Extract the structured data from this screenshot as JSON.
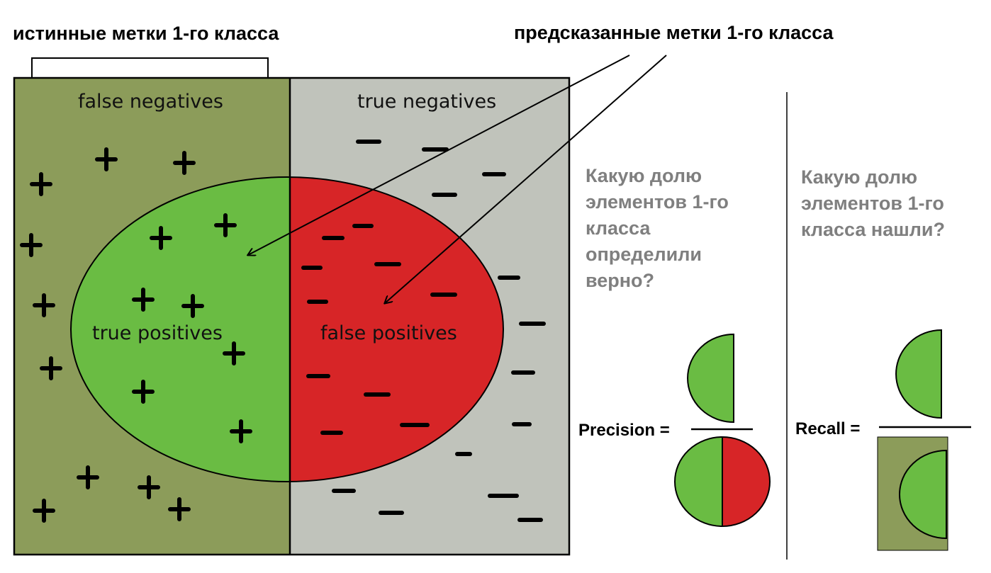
{
  "header": {
    "actual_positive_label": "истинные метки 1-го класса",
    "predicted_positive_label": "предсказанные метки 1-го класса"
  },
  "regions": {
    "false_negatives": "false negatives",
    "true_negatives": "true negatives",
    "true_positives": "true positives",
    "false_positives": "false positives"
  },
  "precision": {
    "question": "Какую долю элементов 1-го класса определили верно?",
    "label": "Precision ="
  },
  "recall": {
    "question": "Какую долю элементов 1-го класса нашли?",
    "label": "Recall ="
  },
  "colors": {
    "actual_negative_background": "#8c9c5a",
    "predicted_negative_background": "#c0c3bb",
    "true_positive": "#6abc43",
    "false_positive": "#d72527",
    "question_text": "#7f7f7f",
    "outline": "#000000"
  },
  "markers": {
    "positive": "plus-marker",
    "negative": "minus-marker"
  }
}
